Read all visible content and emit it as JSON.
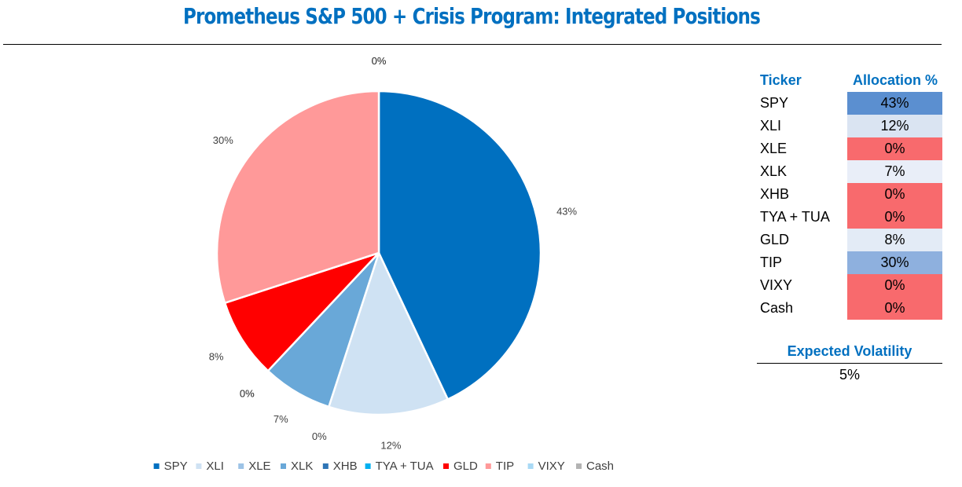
{
  "title": "Prometheus S&P 500 + Crisis Program: Integrated Positions",
  "chart_data": {
    "type": "pie",
    "categories": [
      "SPY",
      "XLI",
      "XLE",
      "XLK",
      "XHB",
      "TYA + TUA",
      "GLD",
      "TIP",
      "VIXY",
      "Cash"
    ],
    "values": [
      43,
      12,
      0,
      7,
      0,
      0,
      8,
      30,
      0,
      0
    ],
    "value_labels": [
      "43%",
      "12%",
      "0%",
      "7%",
      "0%",
      "0%",
      "8%",
      "30%",
      "0%",
      "0%"
    ],
    "colors": [
      "#0070c0",
      "#cfe2f3",
      "#9dc3e6",
      "#69a8d8",
      "#2e75b6",
      "#00b0f0",
      "#ff0000",
      "#ff9999",
      "#a9d9f5",
      "#b3b3b3"
    ],
    "legend_position": "bottom"
  },
  "table": {
    "header_ticker": "Ticker",
    "header_allocation": "Allocation %",
    "rows": [
      {
        "ticker": "SPY",
        "allocation": "43%",
        "color": "#5b8fd0"
      },
      {
        "ticker": "XLI",
        "allocation": "12%",
        "color": "#dae4f2"
      },
      {
        "ticker": "XLE",
        "allocation": "0%",
        "color": "#f86a6d"
      },
      {
        "ticker": "XLK",
        "allocation": "7%",
        "color": "#e9eef8"
      },
      {
        "ticker": "XHB",
        "allocation": "0%",
        "color": "#f86a6d"
      },
      {
        "ticker": "TYA + TUA",
        "allocation": "0%",
        "color": "#f86a6d"
      },
      {
        "ticker": "GLD",
        "allocation": "8%",
        "color": "#e3ebf6"
      },
      {
        "ticker": "TIP",
        "allocation": "30%",
        "color": "#8eb0de"
      },
      {
        "ticker": "VIXY",
        "allocation": "0%",
        "color": "#f86a6d"
      },
      {
        "ticker": "Cash",
        "allocation": "0%",
        "color": "#f86a6d"
      }
    ]
  },
  "volatility": {
    "label": "Expected Volatility",
    "value": "5%"
  }
}
